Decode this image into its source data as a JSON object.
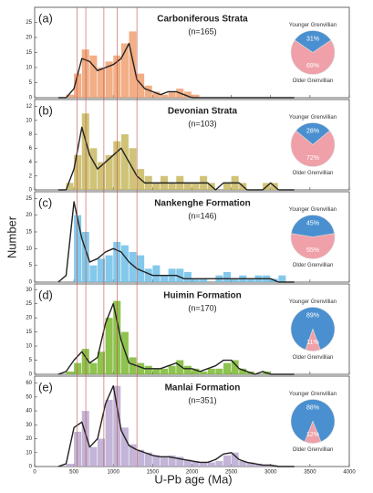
{
  "figure": {
    "ylabel": "Number",
    "xlabel": "U-Pb age (Ma)",
    "xlim": [
      0,
      4000
    ],
    "xticks": [
      0,
      500,
      1000,
      1500,
      2000,
      2500,
      3000,
      3500,
      4000
    ],
    "reference_lines": [
      540,
      650,
      880,
      1050,
      1300
    ],
    "reference_color": "#c0504d"
  },
  "chart_data": [
    {
      "type": "histogram",
      "label": "(a)",
      "title": "Carboniferous Strata",
      "subtitle": "(n=165)",
      "color": "#f0a070",
      "bins": [
        400,
        500,
        600,
        700,
        800,
        900,
        1000,
        1100,
        1200,
        1300,
        1400,
        1500,
        1600,
        1700,
        1800,
        1900,
        2000,
        2100,
        2200,
        2300,
        2400,
        2500,
        2600,
        2700,
        2800,
        2900,
        3000,
        3100,
        3200
      ],
      "values": [
        1,
        8,
        16,
        14,
        10,
        12,
        14,
        18,
        22,
        8,
        4,
        2,
        1,
        2,
        3,
        2,
        1,
        0,
        0,
        0,
        0,
        0,
        0,
        0,
        0,
        0,
        0,
        0
      ],
      "ylim": [
        0,
        30
      ],
      "yticks": [
        0,
        5,
        10,
        15,
        20,
        25
      ],
      "curve": {
        "type": "line",
        "color": "#222222",
        "x": [
          300,
          400,
          500,
          600,
          700,
          800,
          900,
          1000,
          1100,
          1200,
          1300,
          1400,
          1500,
          1600,
          1700,
          1800,
          1900,
          2000,
          2100,
          2200,
          2300,
          2400,
          2500,
          2600,
          2700,
          2800,
          2900,
          3000,
          3100,
          3200,
          3300
        ],
        "values": [
          0,
          0,
          3,
          13,
          12,
          9,
          10,
          11,
          13,
          18,
          6,
          3,
          2,
          1,
          2,
          2,
          1,
          0,
          0,
          0,
          0,
          0,
          0,
          0,
          0,
          0,
          0,
          0,
          0,
          0,
          0
        ]
      },
      "inset": {
        "type": "pie",
        "categories": [
          "Younger Grenvillian",
          "Older Grenvillian"
        ],
        "values": [
          31,
          69
        ],
        "value_labels": [
          "31%",
          "69%"
        ],
        "colors": [
          "#4a90d0",
          "#f0a0a8"
        ]
      }
    },
    {
      "type": "histogram",
      "label": "(b)",
      "title": "Devonian Strata",
      "subtitle": "(n=103)",
      "color": "#c8b860",
      "bins": [
        400,
        500,
        600,
        700,
        800,
        900,
        1000,
        1100,
        1200,
        1300,
        1400,
        1500,
        1600,
        1700,
        1800,
        1900,
        2000,
        2100,
        2200,
        2300,
        2400,
        2500,
        2600,
        2700,
        2800,
        2900,
        3000,
        3100,
        3200
      ],
      "values": [
        1,
        5,
        11,
        6,
        4,
        5,
        7,
        8,
        6,
        3,
        2,
        1,
        2,
        1,
        2,
        1,
        1,
        2,
        1,
        0,
        1,
        2,
        1,
        0,
        0,
        1,
        1,
        0
      ],
      "ylim": [
        0,
        13
      ],
      "yticks": [
        0,
        2,
        4,
        6,
        8,
        10,
        12
      ],
      "curve": {
        "type": "line",
        "color": "#222222",
        "x": [
          300,
          400,
          500,
          600,
          700,
          800,
          900,
          1000,
          1100,
          1200,
          1300,
          1400,
          1500,
          1600,
          1700,
          1800,
          1900,
          2000,
          2100,
          2200,
          2300,
          2400,
          2500,
          2600,
          2700,
          2800,
          2900,
          3000,
          3100,
          3200,
          3300
        ],
        "values": [
          0,
          0,
          3,
          9,
          5,
          3,
          4,
          5,
          6,
          4,
          2,
          1,
          1,
          1,
          1,
          1,
          1,
          1,
          1,
          1,
          0,
          1,
          1,
          1,
          0,
          0,
          0,
          1,
          0,
          0,
          0
        ]
      },
      "inset": {
        "type": "pie",
        "categories": [
          "Younger Grenvillian",
          "Older Grenvillian"
        ],
        "values": [
          28,
          72
        ],
        "value_labels": [
          "28%",
          "72%"
        ],
        "colors": [
          "#4a90d0",
          "#f0a0a8"
        ]
      }
    },
    {
      "type": "histogram",
      "label": "(c)",
      "title": "Nankenghe Formation",
      "subtitle": "(n=146)",
      "color": "#6ec0e8",
      "bins": [
        400,
        500,
        600,
        700,
        800,
        900,
        1000,
        1100,
        1200,
        1300,
        1400,
        1500,
        1600,
        1700,
        1800,
        1900,
        2000,
        2100,
        2200,
        2300,
        2400,
        2500,
        2600,
        2700,
        2800,
        2900,
        3000,
        3100,
        3200
      ],
      "values": [
        0,
        20,
        15,
        5,
        7,
        8,
        12,
        11,
        9,
        8,
        4,
        5,
        2,
        4,
        4,
        3,
        1,
        1,
        0,
        2,
        3,
        1,
        2,
        1,
        2,
        2,
        1,
        2
      ],
      "ylim": [
        0,
        27
      ],
      "yticks": [
        0,
        5,
        10,
        15,
        20,
        25
      ],
      "curve": {
        "type": "line",
        "color": "#222222",
        "x": [
          300,
          400,
          500,
          600,
          700,
          800,
          900,
          1000,
          1100,
          1200,
          1300,
          1400,
          1500,
          1600,
          1700,
          1800,
          1900,
          2000,
          2100,
          2200,
          2300,
          2400,
          2500,
          2600,
          2700,
          2800,
          2900,
          3000,
          3100,
          3200,
          3300
        ],
        "values": [
          0,
          2,
          24,
          13,
          6,
          7,
          9,
          10,
          9,
          6,
          4,
          3,
          2,
          2,
          2,
          2,
          1,
          1,
          1,
          1,
          1,
          1,
          1,
          1,
          1,
          1,
          1,
          1,
          0,
          0,
          0
        ]
      },
      "inset": {
        "type": "pie",
        "categories": [
          "Younger Grenvillian",
          "Older Grenvillian"
        ],
        "values": [
          45,
          55
        ],
        "value_labels": [
          "45%",
          "55%"
        ],
        "colors": [
          "#4a90d0",
          "#f0a0a8"
        ]
      }
    },
    {
      "type": "histogram",
      "label": "(d)",
      "title": "Huimin Formation",
      "subtitle": "(n=170)",
      "color": "#7ab830",
      "bins": [
        400,
        500,
        600,
        700,
        800,
        900,
        1000,
        1100,
        1200,
        1300,
        1400,
        1500,
        1600,
        1700,
        1800,
        1900,
        2000,
        2100,
        2200,
        2300,
        2400,
        2500,
        2600,
        2700,
        2800,
        2900,
        3000,
        3100,
        3200
      ],
      "values": [
        1,
        4,
        9,
        4,
        8,
        20,
        26,
        15,
        6,
        4,
        3,
        2,
        2,
        3,
        5,
        3,
        2,
        1,
        2,
        2,
        4,
        5,
        2,
        1,
        0,
        1,
        0,
        0
      ],
      "ylim": [
        0,
        32
      ],
      "yticks": [
        0,
        5,
        10,
        15,
        20,
        25,
        30
      ],
      "curve": {
        "type": "line",
        "color": "#222222",
        "x": [
          300,
          400,
          500,
          600,
          700,
          800,
          900,
          1000,
          1100,
          1200,
          1300,
          1400,
          1500,
          1600,
          1700,
          1800,
          1900,
          2000,
          2100,
          2200,
          2300,
          2400,
          2500,
          2600,
          2700,
          2800,
          2900,
          3000,
          3100,
          3200,
          3300
        ],
        "values": [
          0,
          1,
          5,
          8,
          4,
          6,
          18,
          25,
          12,
          4,
          3,
          2,
          2,
          2,
          3,
          4,
          2,
          2,
          1,
          2,
          3,
          5,
          5,
          2,
          1,
          0,
          1,
          0,
          0,
          0,
          0
        ]
      },
      "inset": {
        "type": "pie",
        "categories": [
          "Younger Grenvillian",
          "Older Grenvillian"
        ],
        "values": [
          89,
          11
        ],
        "value_labels": [
          "89%",
          "11%"
        ],
        "colors": [
          "#4a90d0",
          "#f0a0a8"
        ]
      }
    },
    {
      "type": "histogram",
      "label": "(e)",
      "title": "Manlai Formation",
      "subtitle": "(n=351)",
      "color": "#b8a8d0",
      "bins": [
        400,
        500,
        600,
        700,
        800,
        900,
        1000,
        1100,
        1200,
        1300,
        1400,
        1500,
        1600,
        1700,
        1800,
        1900,
        2000,
        2100,
        2200,
        2300,
        2400,
        2500,
        2600,
        2700,
        2800,
        2900,
        3000,
        3100,
        3200
      ],
      "values": [
        2,
        25,
        40,
        14,
        20,
        48,
        58,
        28,
        16,
        12,
        10,
        8,
        7,
        8,
        7,
        5,
        4,
        3,
        3,
        4,
        8,
        10,
        4,
        3,
        2,
        1,
        1,
        0
      ],
      "ylim": [
        0,
        65
      ],
      "yticks": [
        0,
        10,
        20,
        30,
        40,
        50,
        60
      ],
      "curve": {
        "type": "line",
        "color": "#222222",
        "x": [
          300,
          400,
          500,
          600,
          700,
          800,
          900,
          1000,
          1100,
          1200,
          1300,
          1400,
          1500,
          1600,
          1700,
          1800,
          1900,
          2000,
          2100,
          2200,
          2300,
          2400,
          2500,
          2600,
          2700,
          2800,
          2900,
          3000,
          3100,
          3200,
          3300
        ],
        "values": [
          0,
          2,
          28,
          32,
          14,
          20,
          45,
          58,
          26,
          15,
          12,
          10,
          8,
          7,
          7,
          6,
          5,
          4,
          3,
          3,
          5,
          9,
          10,
          5,
          3,
          2,
          1,
          1,
          0,
          0,
          0
        ]
      },
      "inset": {
        "type": "pie",
        "categories": [
          "Younger Grenvillian",
          "Older Grenvillian"
        ],
        "values": [
          88,
          12
        ],
        "value_labels": [
          "88%",
          "12%"
        ],
        "colors": [
          "#4a90d0",
          "#f0a0a8"
        ]
      }
    }
  ]
}
